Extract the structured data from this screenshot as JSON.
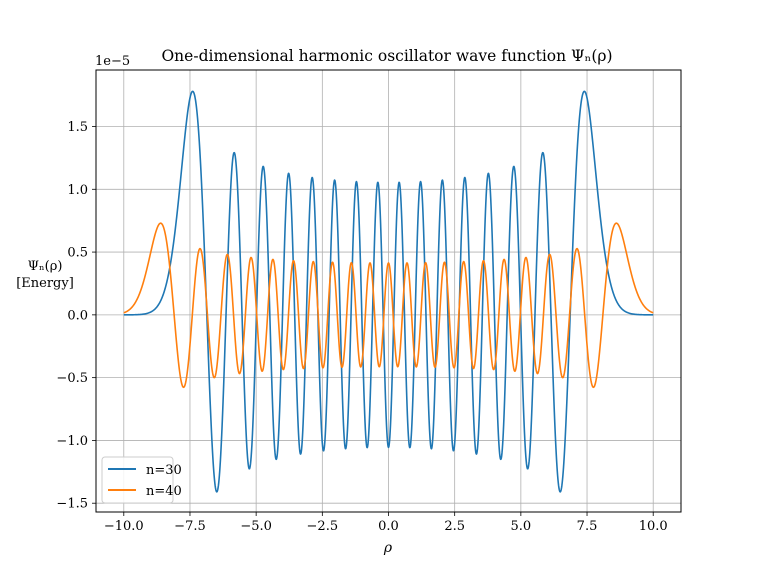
{
  "chart_data": {
    "type": "line",
    "title": "One-dimensional harmonic oscillator wave function Ψₙ(ρ)",
    "xlabel": "ρ",
    "ylabel_line1": "Ψₙ(ρ)",
    "ylabel_line2": "[Energy]",
    "y_offset_label": "1e−5",
    "xlim": [
      -11.05,
      11.05
    ],
    "ylim": [
      -1.57,
      1.95
    ],
    "x_ticks": [
      -10.0,
      -7.5,
      -5.0,
      -2.5,
      0.0,
      2.5,
      5.0,
      7.5,
      10.0
    ],
    "x_tick_labels": [
      "−10.0",
      "−7.5",
      "−5.0",
      "−2.5",
      "0.0",
      "2.5",
      "5.0",
      "7.5",
      "10.0"
    ],
    "y_ticks": [
      -1.5,
      -1.0,
      -0.5,
      0.0,
      0.5,
      1.0,
      1.5
    ],
    "y_tick_labels": [
      "−1.5",
      "−1.0",
      "−0.5",
      "0.0",
      "0.5",
      "1.0",
      "1.5"
    ],
    "grid": true,
    "legend_position": "lower-left",
    "series": [
      {
        "name": "n=30",
        "color": "#1f77b4",
        "peak_value": 1.78,
        "x_range": [
          -10,
          10
        ],
        "description_points": [
          {
            "x": -7.4,
            "y": 1.78
          },
          {
            "x": -6.5,
            "y": -1.4
          },
          {
            "x": -5.8,
            "y": 1.29
          },
          {
            "x": -4.95,
            "y": -1.23
          },
          {
            "x": 0.0,
            "y": 1.05
          },
          {
            "x": 4.95,
            "y": -1.23
          },
          {
            "x": 5.8,
            "y": 1.29
          },
          {
            "x": 6.5,
            "y": -1.4
          },
          {
            "x": 7.4,
            "y": 1.78
          }
        ]
      },
      {
        "name": "n=40",
        "color": "#ff7f0e",
        "peak_value": 0.73,
        "x_range": [
          -10,
          10
        ],
        "description_points": [
          {
            "x": -8.6,
            "y": 0.73
          },
          {
            "x": -7.6,
            "y": -0.58
          },
          {
            "x": -7.1,
            "y": 0.53
          },
          {
            "x": -6.5,
            "y": -0.5
          },
          {
            "x": 0.0,
            "y": 0.41
          },
          {
            "x": 6.5,
            "y": -0.5
          },
          {
            "x": 7.1,
            "y": 0.53
          },
          {
            "x": 7.6,
            "y": -0.58
          },
          {
            "x": 8.6,
            "y": 0.73
          }
        ]
      }
    ]
  }
}
